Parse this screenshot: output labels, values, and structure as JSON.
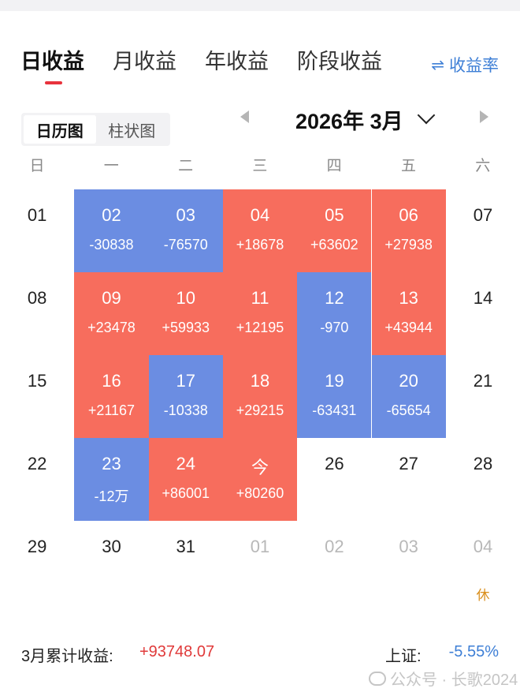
{
  "tabs": [
    {
      "label": "日收益",
      "active": true
    },
    {
      "label": "月收益",
      "active": false
    },
    {
      "label": "年收益",
      "active": false
    },
    {
      "label": "阶段收益",
      "active": false
    }
  ],
  "rate_link": {
    "icon": "swap-icon",
    "glyph": "⇌",
    "label": "收益率"
  },
  "view_toggle": [
    {
      "label": "日历图",
      "active": true
    },
    {
      "label": "柱状图",
      "active": false
    }
  ],
  "month": {
    "title": "2026年 3月"
  },
  "weekdays": [
    "日",
    "一",
    "二",
    "三",
    "四",
    "五",
    "六"
  ],
  "colors": {
    "gain": "#f76d5d",
    "loss": "#6b8de2",
    "accent": "#e8323c",
    "link": "#3e7fd6"
  },
  "weeks": [
    [
      {
        "day": "01",
        "value": "",
        "state": "none"
      },
      {
        "day": "02",
        "value": "-30838",
        "state": "loss"
      },
      {
        "day": "03",
        "value": "-76570",
        "state": "loss"
      },
      {
        "day": "04",
        "value": "+18678",
        "state": "gain"
      },
      {
        "day": "05",
        "value": "+63602",
        "state": "gain"
      },
      {
        "day": "06",
        "value": "+27938",
        "state": "gain"
      },
      {
        "day": "07",
        "value": "",
        "state": "none"
      }
    ],
    [
      {
        "day": "08",
        "value": "",
        "state": "none"
      },
      {
        "day": "09",
        "value": "+23478",
        "state": "gain"
      },
      {
        "day": "10",
        "value": "+59933",
        "state": "gain"
      },
      {
        "day": "11",
        "value": "+12195",
        "state": "gain"
      },
      {
        "day": "12",
        "value": "-970",
        "state": "loss"
      },
      {
        "day": "13",
        "value": "+43944",
        "state": "gain"
      },
      {
        "day": "14",
        "value": "",
        "state": "none"
      }
    ],
    [
      {
        "day": "15",
        "value": "",
        "state": "none"
      },
      {
        "day": "16",
        "value": "+21167",
        "state": "gain"
      },
      {
        "day": "17",
        "value": "-10338",
        "state": "loss"
      },
      {
        "day": "18",
        "value": "+29215",
        "state": "gain"
      },
      {
        "day": "19",
        "value": "-63431",
        "state": "loss"
      },
      {
        "day": "20",
        "value": "-65654",
        "state": "loss"
      },
      {
        "day": "21",
        "value": "",
        "state": "none"
      }
    ],
    [
      {
        "day": "22",
        "value": "",
        "state": "none"
      },
      {
        "day": "23",
        "value": "-12万",
        "state": "loss"
      },
      {
        "day": "24",
        "value": "+86001",
        "state": "gain"
      },
      {
        "day": "今",
        "value": "+80260",
        "state": "gain"
      },
      {
        "day": "26",
        "value": "",
        "state": "none"
      },
      {
        "day": "27",
        "value": "",
        "state": "none"
      },
      {
        "day": "28",
        "value": "",
        "state": "none"
      }
    ],
    [
      {
        "day": "29",
        "value": "",
        "state": "none"
      },
      {
        "day": "30",
        "value": "",
        "state": "none"
      },
      {
        "day": "31",
        "value": "",
        "state": "none"
      },
      {
        "day": "01",
        "value": "",
        "state": "other"
      },
      {
        "day": "02",
        "value": "",
        "state": "other"
      },
      {
        "day": "03",
        "value": "",
        "state": "other"
      },
      {
        "day": "04",
        "value": "",
        "state": "other",
        "note": "休"
      }
    ]
  ],
  "summary": {
    "cumulative_label": "3月累计收益:",
    "cumulative_value": "+93748.07",
    "index_label": "上证:",
    "index_value": "-5.55%"
  },
  "watermark": {
    "text": "公众号 · 长歌2024"
  }
}
